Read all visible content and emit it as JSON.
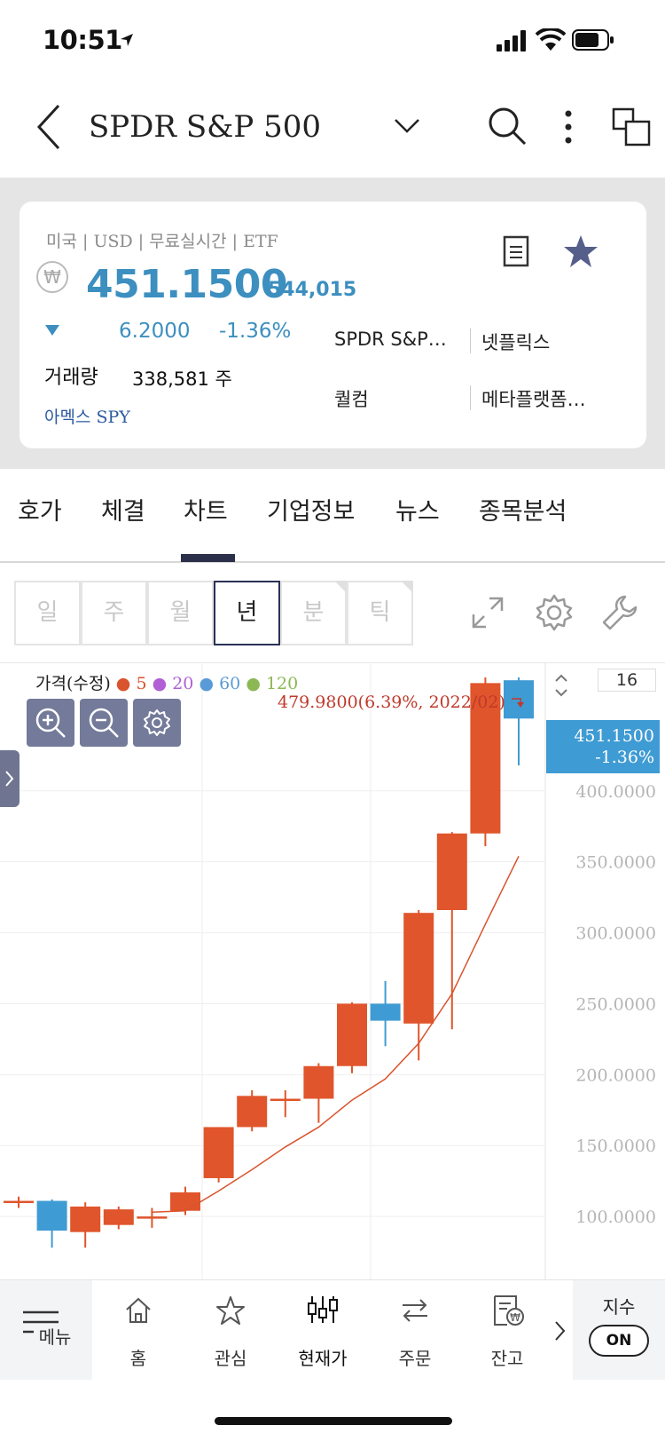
{
  "status_bar": {
    "time": "10:51"
  },
  "header": {
    "title": "SPDR S&P 500"
  },
  "quote": {
    "meta": "미국 | USD | 무료실시간 | ETF",
    "currency_symbol": "₩",
    "price": "451.1500",
    "price_krw": "544,015",
    "change": "6.2000",
    "change_pct": "-1.36%",
    "volume_label": "거래량",
    "volume_value": "338,581  주",
    "ticker": "아멕스 SPY",
    "related": [
      "SPDR S&P…",
      "넷플릭스",
      "퀄컴",
      "메타플랫폼…"
    ]
  },
  "tabs": [
    "호가",
    "체결",
    "차트",
    "기업정보",
    "뉴스",
    "종목분석"
  ],
  "active_tab": "차트",
  "periods": [
    "일",
    "주",
    "월",
    "년",
    "분",
    "틱"
  ],
  "active_period": "년",
  "chart_data": {
    "type": "candlestick",
    "legend_title": "가격(수정)",
    "ma_legend": [
      {
        "name": "5",
        "color": "#d9532c"
      },
      {
        "name": "20",
        "color": "#b05fd4"
      },
      {
        "name": "60",
        "color": "#5a9ad6"
      },
      {
        "name": "120",
        "color": "#8cb854"
      }
    ],
    "max_label": "479.9800(6.39%, 2022/02)",
    "current_label": {
      "price": "451.1500",
      "pct": "-1.36%"
    },
    "visible_count": "16",
    "y_ticks": [
      "400.0000",
      "350.0000",
      "300.0000",
      "250.0000",
      "200.0000",
      "150.0000",
      "100.0000"
    ],
    "y_tick_values": [
      400,
      350,
      300,
      250,
      200,
      150,
      100
    ],
    "ylim": [
      55,
      490
    ],
    "candles": [
      {
        "o": 111,
        "c": 111,
        "h": 114,
        "l": 106
      },
      {
        "o": 111,
        "c": 90,
        "h": 112,
        "l": 78
      },
      {
        "o": 89,
        "c": 107,
        "h": 110,
        "l": 78
      },
      {
        "o": 94,
        "c": 105,
        "h": 107,
        "l": 91
      },
      {
        "o": 100,
        "c": 100,
        "h": 106,
        "l": 92
      },
      {
        "o": 104,
        "c": 117,
        "h": 121,
        "l": 101
      },
      {
        "o": 127,
        "c": 163,
        "h": 163,
        "l": 124
      },
      {
        "o": 163,
        "c": 185,
        "h": 189,
        "l": 160
      },
      {
        "o": 183,
        "c": 183,
        "h": 189,
        "l": 170
      },
      {
        "o": 183,
        "c": 206,
        "h": 208,
        "l": 166
      },
      {
        "o": 206,
        "c": 250,
        "h": 251,
        "l": 201
      },
      {
        "o": 250,
        "c": 238,
        "h": 266,
        "l": 220
      },
      {
        "o": 236,
        "c": 314,
        "h": 316,
        "l": 210
      },
      {
        "o": 316,
        "c": 370,
        "h": 371,
        "l": 232
      },
      {
        "o": 370,
        "c": 476,
        "h": 480,
        "l": 361
      },
      {
        "o": 478,
        "c": 451,
        "h": 480,
        "l": 418
      }
    ],
    "ma5": [
      null,
      null,
      null,
      null,
      103,
      104,
      118,
      133,
      149,
      163,
      182,
      197,
      222,
      257,
      306,
      354
    ],
    "up_color": "#e0552b",
    "down_color": "#3f9bd3"
  },
  "bottom_nav": {
    "menu": "메뉴",
    "items": [
      "홈",
      "관심",
      "현재가",
      "주문",
      "잔고"
    ],
    "index_label": "지수",
    "index_toggle": "ON"
  }
}
